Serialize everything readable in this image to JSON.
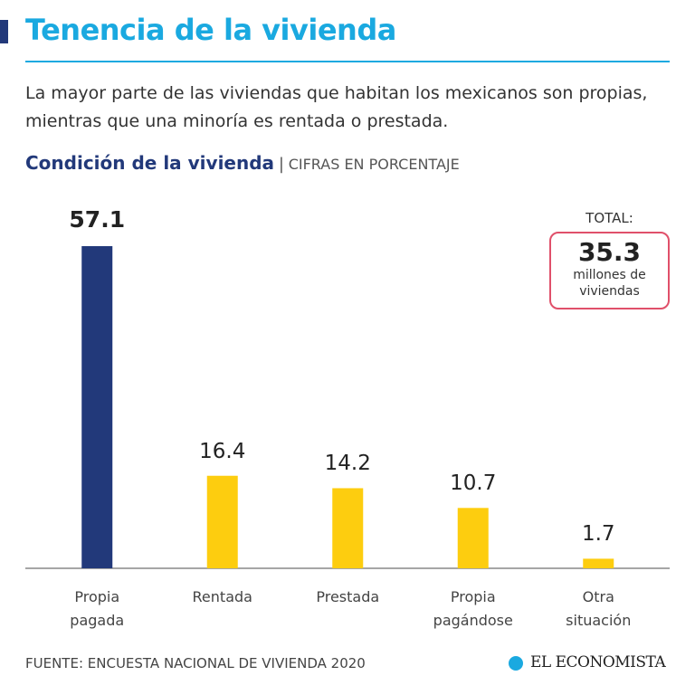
{
  "chart_data": {
    "type": "bar",
    "title": "Tenencia de la vivienda",
    "subtitle": "La mayor parte de las viviendas que habitan los mexicanos son propias, mientras que una minoría es rentada o prestada.",
    "chart_title": "Condición de la vivienda",
    "unit_label": "CIFRAS EN PORCENTAJE",
    "categories": [
      "Propia pagada",
      "Rentada",
      "Prestada",
      "Propia pagándose",
      "Otra situación"
    ],
    "values": [
      57.1,
      16.4,
      14.2,
      10.7,
      1.7
    ],
    "colors": [
      "#22397a",
      "#fdcd0f",
      "#fdcd0f",
      "#fdcd0f",
      "#fdcd0f"
    ],
    "annotation": {
      "label": "TOTAL:",
      "value": 35.3,
      "text": "millones de viviendas"
    },
    "source": "FUENTE: ENCUESTA NACIONAL DE VIVIENDA 2020",
    "brand": "EL ECONOMISTA"
  }
}
